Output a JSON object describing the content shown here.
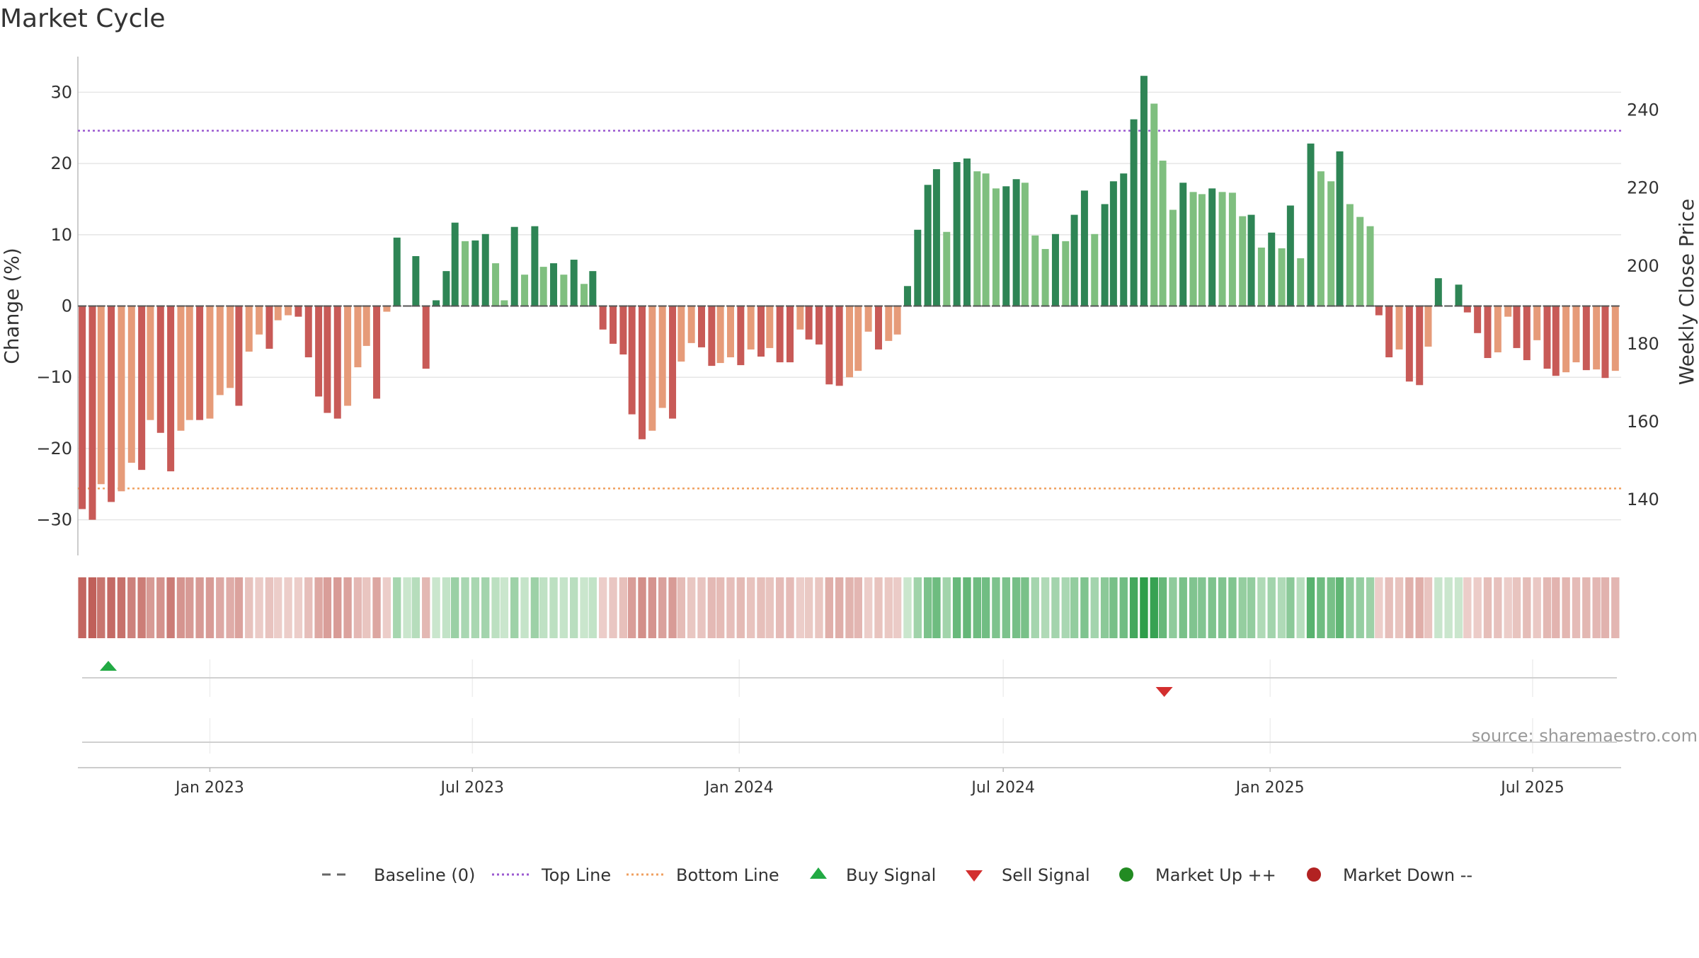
{
  "title": "Market Cycle",
  "source": "source: sharemaestro.com",
  "colors": {
    "up_strong": "#2e8555",
    "up_light": "#7fbf7f",
    "down_strong": "#c85a57",
    "down_light": "#e69b79",
    "top_line": "#9b59d0",
    "bottom_line": "#f0a060",
    "buy": "#22aa44",
    "sell": "#d32f2f",
    "market_up": "#228B22",
    "market_down": "#B22222",
    "baseline": "#555555"
  },
  "legend": [
    {
      "key": "baseline",
      "label": "Baseline (0)",
      "icon": "dash-line-icon"
    },
    {
      "key": "top",
      "label": "Top Line",
      "icon": "dotted-purple-line-icon"
    },
    {
      "key": "bottom",
      "label": "Bottom Line",
      "icon": "dotted-orange-line-icon"
    },
    {
      "key": "buy",
      "label": "Buy Signal",
      "icon": "triangle-up-icon"
    },
    {
      "key": "sell",
      "label": "Sell Signal",
      "icon": "triangle-down-icon"
    },
    {
      "key": "mup",
      "label": "Market Up ++",
      "icon": "green-dot-icon"
    },
    {
      "key": "mdown",
      "label": "Market Down --",
      "icon": "red-dot-icon"
    }
  ],
  "chart_data": {
    "type": "bar",
    "title": "Market Cycle",
    "ylabel": "Change (%)",
    "y2label": "Weekly Close Price",
    "ylim": [
      -35,
      35
    ],
    "yticks": [
      -30,
      -20,
      -10,
      0,
      10,
      20,
      30
    ],
    "y2lim": [
      125.7,
      253.7
    ],
    "y2ticks": [
      140,
      160,
      180,
      200,
      220,
      240
    ],
    "top_line": 24.6,
    "bottom_line": -25.6,
    "x_start": "2022-10-02",
    "x_end": "2025-08-31",
    "x_ticks": [
      {
        "date": "2023-01-01",
        "label": "Jan 2023"
      },
      {
        "date": "2023-07-01",
        "label": "Jul 2023"
      },
      {
        "date": "2024-01-01",
        "label": "Jan 2024"
      },
      {
        "date": "2024-07-01",
        "label": "Jul 2024"
      },
      {
        "date": "2025-01-01",
        "label": "Jan 2025"
      },
      {
        "date": "2025-07-01",
        "label": "Jul 2025"
      }
    ],
    "buy_signals": [
      "2022-10-23"
    ],
    "sell_signals": [
      "2024-10-20"
    ],
    "grid": true,
    "legend_position": "bottom",
    "series": [
      {
        "values": [
          -28.5,
          -30,
          -25,
          -27.5,
          -26,
          -22,
          -23,
          -16,
          -17.8,
          -23.2,
          -17.5,
          -16,
          -16,
          -15.8,
          -12.5,
          -11.5,
          -14,
          -6.4,
          -4,
          -6,
          -2,
          -1.3,
          -1.5,
          -7.2,
          -12.7,
          -15,
          -15.8,
          -14,
          -8.6,
          -5.6,
          -13,
          -0.8,
          9.6,
          0,
          7,
          -8.8,
          0.8,
          4.9,
          11.7,
          9.1,
          9.2,
          10.1,
          6,
          0.8,
          11.1,
          4.4,
          11.2,
          5.5,
          6,
          4.4,
          6.5,
          3.1,
          4.9,
          -3.3,
          -5.3,
          -6.8,
          -15.2,
          -18.7,
          -17.5,
          -14.3,
          -15.8,
          -7.8,
          -5.2,
          -5.8,
          -8.4,
          -8,
          -7.2,
          -8.3,
          -6.1,
          -7.1,
          -5.9,
          -7.9,
          -7.9,
          -3.3,
          -4.7,
          -5.4,
          -11,
          -11.2,
          -10,
          -9.1,
          -3.6,
          -6.1,
          -4.9,
          -4,
          2.8,
          10.7,
          17,
          19.2,
          10.4,
          20.2,
          20.7,
          18.9,
          18.6,
          16.5,
          16.8,
          17.8,
          17.3,
          9.9,
          8,
          10.1,
          9.1,
          12.8,
          16.2,
          10.1,
          14.3,
          17.5,
          18.6,
          26.2,
          32.3,
          28.4,
          20.4,
          13.5,
          17.3,
          16,
          15.7,
          16.5,
          16,
          15.9,
          12.6,
          12.8,
          8.2,
          10.3,
          8.1,
          14.1,
          6.7,
          22.8,
          18.9,
          17.5,
          21.7,
          14.3,
          12.5,
          11.2,
          -1.3,
          -7.2,
          -6.1,
          -10.6,
          -11.1,
          -5.7,
          3.9,
          0,
          3,
          -0.9,
          -3.8,
          -7.3,
          -6.5,
          -1.5,
          -5.9,
          -7.6,
          -4.8,
          -8.8,
          -9.8,
          -9.3,
          -7.9,
          -9,
          -8.9,
          -10.1,
          -9.1
        ]
      }
    ]
  }
}
